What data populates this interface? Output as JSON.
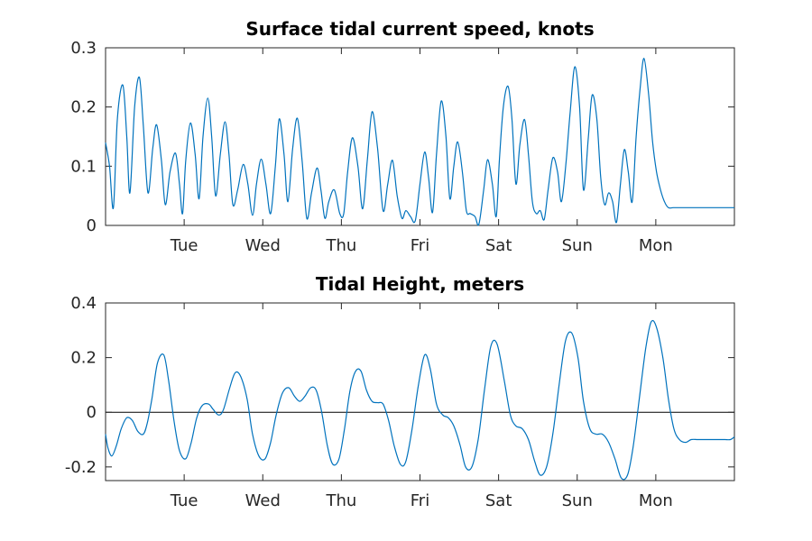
{
  "colors": {
    "series": "#0072BD",
    "axis": "#262626",
    "zero_line": "#000000"
  },
  "chart_data": [
    {
      "type": "line",
      "title": "Surface tidal current speed, knots",
      "xlabel": "",
      "ylabel": "",
      "x_unit": "days",
      "xlim": [
        0,
        8
      ],
      "ylim": [
        0,
        0.3
      ],
      "yticks": [
        0,
        0.1,
        0.2,
        0.3
      ],
      "ytick_labels": [
        "0",
        "0.1",
        "0.2",
        "0.3"
      ],
      "xticks": [
        1,
        2,
        3,
        4,
        5,
        6,
        7
      ],
      "xtick_labels": [
        "Tue",
        "Wed",
        "Thu",
        "Fri",
        "Sat",
        "Sun",
        "Mon"
      ],
      "grid": false,
      "legend": "none",
      "series": [
        {
          "x": [
            0.0,
            0.05,
            0.1,
            0.15,
            0.22,
            0.27,
            0.31,
            0.37,
            0.43,
            0.48,
            0.54,
            0.6,
            0.65,
            0.71,
            0.76,
            0.82,
            0.89,
            0.94,
            0.98,
            1.02,
            1.08,
            1.14,
            1.19,
            1.24,
            1.3,
            1.35,
            1.4,
            1.46,
            1.52,
            1.57,
            1.62,
            1.68,
            1.75,
            1.81,
            1.87,
            1.92,
            1.98,
            2.04,
            2.1,
            2.16,
            2.21,
            2.27,
            2.32,
            2.38,
            2.44,
            2.5,
            2.56,
            2.62,
            2.69,
            2.74,
            2.79,
            2.84,
            2.91,
            2.98,
            3.03,
            3.08,
            3.14,
            3.21,
            3.27,
            3.33,
            3.39,
            3.46,
            3.53,
            3.59,
            3.65,
            3.71,
            3.77,
            3.82,
            3.88,
            3.94,
            4.0,
            4.06,
            4.11,
            4.16,
            4.21,
            4.27,
            4.33,
            4.38,
            4.43,
            4.48,
            4.54,
            4.59,
            4.64,
            4.7,
            4.75,
            4.81,
            4.86,
            4.92,
            4.97,
            5.01,
            5.06,
            5.12,
            5.17,
            5.22,
            5.27,
            5.33,
            5.38,
            5.43,
            5.48,
            5.53,
            5.58,
            5.63,
            5.69,
            5.75,
            5.8,
            5.86,
            5.91,
            5.97,
            6.03,
            6.08,
            6.14,
            6.19,
            6.25,
            6.3,
            6.35,
            6.4,
            6.45,
            6.5,
            6.55,
            6.6,
            6.65,
            6.7,
            6.75,
            6.8,
            6.85,
            6.91,
            6.96,
            7.01,
            7.06,
            7.11,
            7.16,
            7.22,
            7.27,
            7.32,
            7.37,
            7.42,
            7.47,
            7.52,
            7.58,
            7.63,
            7.68,
            7.73,
            7.78,
            7.83,
            7.88,
            7.93,
            7.98,
            8.0
          ],
          "y": [
            0.14,
            0.1,
            0.03,
            0.18,
            0.237,
            0.15,
            0.055,
            0.2,
            0.25,
            0.17,
            0.055,
            0.13,
            0.17,
            0.11,
            0.035,
            0.09,
            0.122,
            0.07,
            0.02,
            0.11,
            0.173,
            0.12,
            0.045,
            0.15,
            0.215,
            0.15,
            0.05,
            0.12,
            0.175,
            0.12,
            0.035,
            0.06,
            0.103,
            0.07,
            0.017,
            0.07,
            0.112,
            0.07,
            0.02,
            0.1,
            0.18,
            0.12,
            0.04,
            0.13,
            0.181,
            0.11,
            0.012,
            0.055,
            0.097,
            0.06,
            0.012,
            0.04,
            0.06,
            0.02,
            0.02,
            0.09,
            0.148,
            0.1,
            0.028,
            0.11,
            0.192,
            0.13,
            0.025,
            0.07,
            0.11,
            0.05,
            0.012,
            0.025,
            0.015,
            0.008,
            0.07,
            0.124,
            0.08,
            0.022,
            0.12,
            0.21,
            0.15,
            0.045,
            0.1,
            0.141,
            0.09,
            0.025,
            0.02,
            0.015,
            0.002,
            0.06,
            0.111,
            0.07,
            0.015,
            0.11,
            0.2,
            0.235,
            0.18,
            0.07,
            0.135,
            0.179,
            0.12,
            0.04,
            0.02,
            0.025,
            0.01,
            0.06,
            0.114,
            0.09,
            0.04,
            0.11,
            0.19,
            0.268,
            0.2,
            0.06,
            0.145,
            0.22,
            0.18,
            0.08,
            0.035,
            0.055,
            0.04,
            0.005,
            0.07,
            0.128,
            0.09,
            0.04,
            0.15,
            0.23,
            0.282,
            0.22,
            0.14,
            0.09,
            0.06,
            0.04,
            0.03,
            0.03,
            0.03,
            0.03,
            0.03,
            0.03,
            0.03,
            0.03,
            0.03,
            0.03,
            0.03,
            0.03,
            0.03,
            0.03,
            0.03,
            0.03,
            0.03,
            0.03
          ]
        }
      ]
    },
    {
      "type": "line",
      "title": "Tidal Height, meters",
      "xlabel": "",
      "ylabel": "",
      "x_unit": "days",
      "xlim": [
        0,
        8
      ],
      "ylim": [
        -0.25,
        0.4
      ],
      "yticks": [
        -0.2,
        0,
        0.2,
        0.4
      ],
      "ytick_labels": [
        "-0.2",
        "0",
        "0.2",
        "0.4"
      ],
      "xticks": [
        1,
        2,
        3,
        4,
        5,
        6,
        7
      ],
      "xtick_labels": [
        "Tue",
        "Wed",
        "Thu",
        "Fri",
        "Sat",
        "Sun",
        "Mon"
      ],
      "zero_line": true,
      "grid": false,
      "legend": "none",
      "series": [
        {
          "x": [
            0.0,
            0.03,
            0.08,
            0.14,
            0.2,
            0.27,
            0.34,
            0.41,
            0.48,
            0.53,
            0.59,
            0.66,
            0.74,
            0.8,
            0.87,
            0.94,
            1.02,
            1.09,
            1.16,
            1.23,
            1.31,
            1.37,
            1.44,
            1.5,
            1.58,
            1.65,
            1.72,
            1.8,
            1.87,
            1.95,
            2.03,
            2.1,
            2.17,
            2.25,
            2.33,
            2.4,
            2.47,
            2.54,
            2.61,
            2.68,
            2.75,
            2.82,
            2.89,
            2.97,
            3.04,
            3.11,
            3.18,
            3.25,
            3.32,
            3.39,
            3.46,
            3.53,
            3.6,
            3.67,
            3.75,
            3.82,
            3.9,
            3.98,
            4.06,
            4.13,
            4.21,
            4.29,
            4.36,
            4.43,
            4.51,
            4.58,
            4.66,
            4.74,
            4.82,
            4.9,
            4.98,
            5.07,
            5.15,
            5.22,
            5.3,
            5.38,
            5.46,
            5.53,
            5.61,
            5.69,
            5.77,
            5.85,
            5.93,
            6.01,
            6.08,
            6.16,
            6.24,
            6.32,
            6.4,
            6.48,
            6.56,
            6.64,
            6.71,
            6.79,
            6.87,
            6.94,
            7.01,
            7.09,
            7.16,
            7.23,
            7.3,
            7.38,
            7.45,
            7.53,
            7.6,
            7.67,
            7.74,
            7.81,
            7.88,
            7.95,
            8.0
          ],
          "y": [
            -0.08,
            -0.13,
            -0.16,
            -0.12,
            -0.06,
            -0.02,
            -0.03,
            -0.07,
            -0.08,
            -0.04,
            0.05,
            0.18,
            0.21,
            0.12,
            -0.03,
            -0.14,
            -0.17,
            -0.11,
            -0.02,
            0.025,
            0.03,
            0.01,
            -0.01,
            0.01,
            0.09,
            0.145,
            0.13,
            0.05,
            -0.08,
            -0.16,
            -0.17,
            -0.11,
            -0.01,
            0.07,
            0.09,
            0.06,
            0.04,
            0.06,
            0.09,
            0.08,
            0.0,
            -0.12,
            -0.19,
            -0.17,
            -0.06,
            0.08,
            0.15,
            0.15,
            0.08,
            0.04,
            0.035,
            0.03,
            -0.03,
            -0.12,
            -0.19,
            -0.18,
            -0.06,
            0.1,
            0.21,
            0.16,
            0.03,
            -0.01,
            -0.02,
            -0.05,
            -0.12,
            -0.2,
            -0.2,
            -0.1,
            0.08,
            0.24,
            0.25,
            0.12,
            -0.01,
            -0.05,
            -0.06,
            -0.1,
            -0.18,
            -0.23,
            -0.2,
            -0.08,
            0.1,
            0.26,
            0.29,
            0.2,
            0.04,
            -0.06,
            -0.08,
            -0.08,
            -0.11,
            -0.17,
            -0.24,
            -0.23,
            -0.13,
            0.05,
            0.23,
            0.33,
            0.31,
            0.2,
            0.05,
            -0.06,
            -0.1,
            -0.11,
            -0.1,
            -0.1,
            -0.1,
            -0.1,
            -0.1,
            -0.1,
            -0.1,
            -0.1,
            -0.09
          ]
        }
      ]
    }
  ]
}
